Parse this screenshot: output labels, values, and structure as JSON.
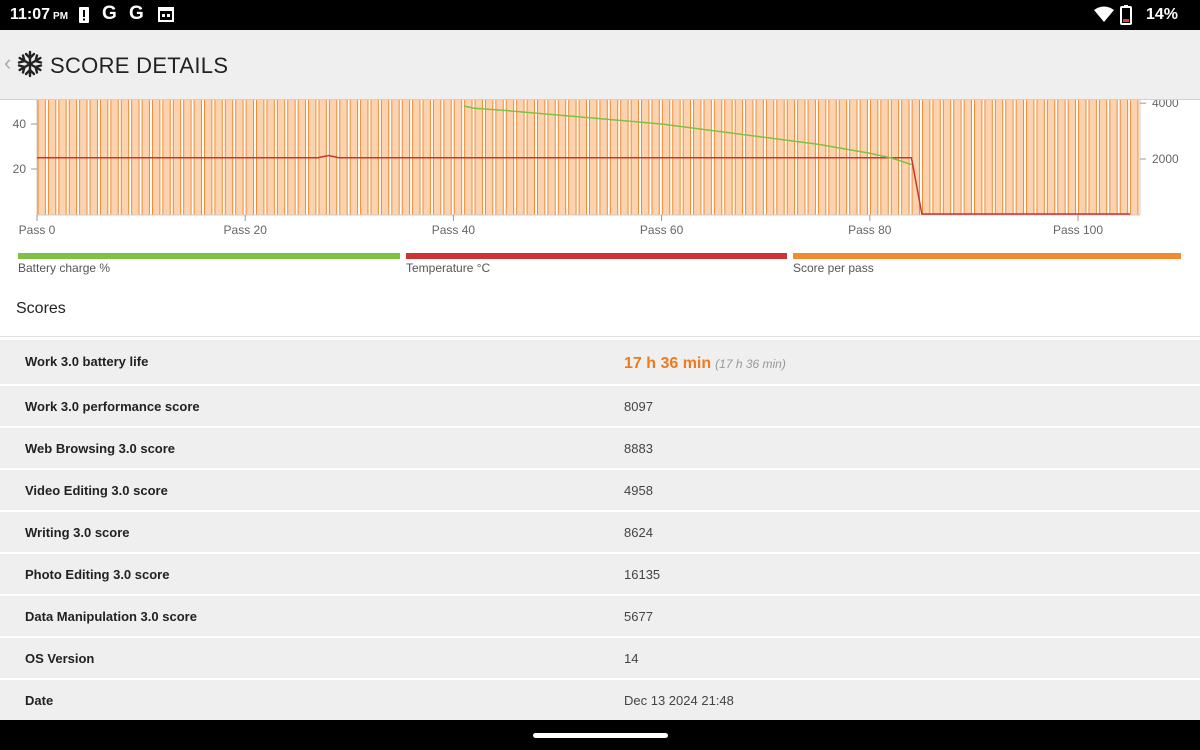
{
  "status_bar": {
    "time": "11:07",
    "ampm": "PM",
    "battery": "14%",
    "icons": [
      "alert-icon",
      "google-icon",
      "google-icon",
      "calendar-icon",
      "wifi-icon",
      "battery-icon"
    ]
  },
  "app_bar": {
    "title": "SCORE DETAILS",
    "back_icon": "chevron-left-icon",
    "logo_icon": "snowflake-icon"
  },
  "chart_data": {
    "type": "bar",
    "x_tick_labels": [
      "Pass 0",
      "Pass 20",
      "Pass 40",
      "Pass 60",
      "Pass 80",
      "Pass 100"
    ],
    "y_left_tick_labels": [
      "40",
      "20"
    ],
    "y_right_tick_labels": [
      "4000",
      "2000"
    ],
    "grid": true,
    "legend_position": "bottom",
    "bar_count": 106,
    "series": [
      {
        "name": "Battery charge %",
        "type": "line",
        "color": "#7dc242",
        "x": [
          41,
          42,
          45,
          50,
          55,
          60,
          65,
          70,
          75,
          80,
          82,
          84
        ],
        "values": [
          48,
          47,
          46,
          44,
          42,
          40,
          37,
          34,
          31,
          27,
          25,
          22
        ]
      },
      {
        "name": "Temperature °C",
        "type": "line",
        "color": "#cc3333",
        "x": [
          0,
          27,
          28,
          29,
          30,
          84,
          85,
          86,
          105
        ],
        "values": [
          25,
          25,
          26,
          25,
          25,
          25,
          0,
          0,
          0
        ]
      },
      {
        "name": "Score per pass",
        "type": "bar",
        "color": "#f28a30",
        "x_range": [
          0,
          105
        ],
        "value": 5000
      }
    ]
  },
  "legend": [
    {
      "label": "Battery charge %",
      "color": "#7dc242"
    },
    {
      "label": "Temperature °C",
      "color": "#cc3333"
    },
    {
      "label": "Score per pass",
      "color": "#f28a30"
    }
  ],
  "scores": {
    "title": "Scores",
    "rows": [
      {
        "label": "Work 3.0 battery life",
        "value": "17 h 36 min",
        "sub": "(17 h 36 min)"
      },
      {
        "label": "Work 3.0 performance score",
        "value": "8097"
      },
      {
        "label": "Web Browsing 3.0 score",
        "value": "8883"
      },
      {
        "label": "Video Editing 3.0 score",
        "value": "4958"
      },
      {
        "label": "Writing 3.0 score",
        "value": "8624"
      },
      {
        "label": "Photo Editing 3.0 score",
        "value": "16135"
      },
      {
        "label": "Data Manipulation 3.0 score",
        "value": "5677"
      },
      {
        "label": "OS Version",
        "value": "14"
      },
      {
        "label": "Date",
        "value": "Dec 13 2024 21:48"
      }
    ]
  }
}
